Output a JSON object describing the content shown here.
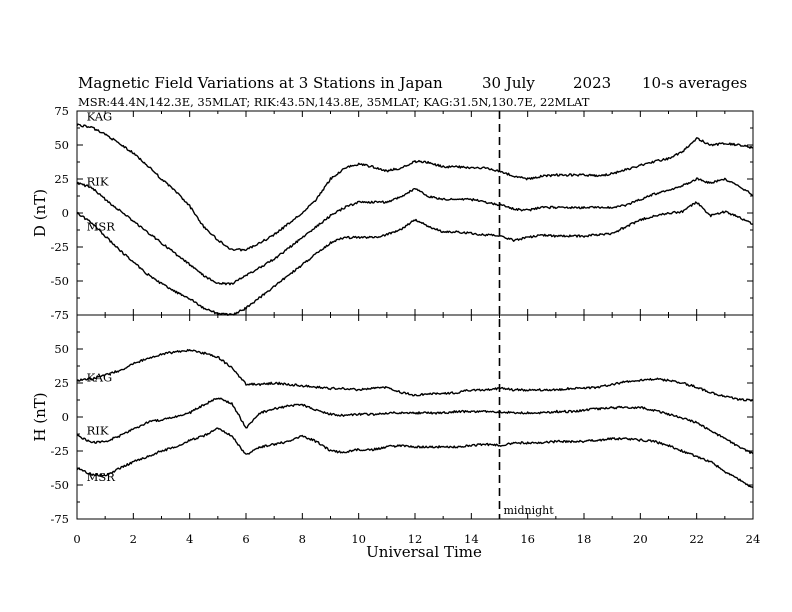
{
  "chart_data": {
    "type": "line",
    "title": "Magnetic Field Variations at 3 Stations in Japan",
    "date": "30 July",
    "year": "2023",
    "averaging": "10-s averages",
    "subtitle": "MSR:44.4N,142.3E, 35MLAT;  RIK:43.5N,143.8E, 35MLAT;  KAG:31.5N,130.7E, 22MLAT",
    "xlabel": "Universal Time",
    "xlim": [
      0,
      24
    ],
    "xticks": [
      0,
      2,
      4,
      6,
      8,
      10,
      12,
      14,
      16,
      18,
      20,
      22,
      24
    ],
    "grid": false,
    "annotation": {
      "x": 15,
      "label": "midnight"
    },
    "panels": [
      {
        "ylabel": "D (nT)",
        "ylim": [
          -75,
          75
        ],
        "yticks": [
          75,
          50,
          25,
          0,
          -25,
          -50,
          -75
        ],
        "series": [
          {
            "name": "KAG",
            "label_x": 0.2,
            "label_y": 71,
            "x": [
              0,
              0.5,
              1,
              1.5,
              2,
              2.5,
              3,
              3.5,
              4,
              4.5,
              5,
              5.5,
              6,
              6.5,
              7,
              7.5,
              8,
              8.5,
              9,
              9.5,
              10,
              10.5,
              11,
              11.5,
              12,
              12.5,
              13,
              13.5,
              14,
              14.5,
              15,
              15.5,
              16,
              16.5,
              17,
              17.5,
              18,
              18.5,
              19,
              19.5,
              20,
              20.5,
              21,
              21.5,
              22,
              22.5,
              23,
              23.5,
              24
            ],
            "y": [
              65,
              63,
              58,
              51,
              44,
              35,
              25,
              16,
              5,
              -10,
              -20,
              -27,
              -27,
              -22,
              -16,
              -8,
              0,
              10,
              25,
              33,
              36,
              34,
              31,
              33,
              38,
              37,
              34,
              34,
              33,
              33,
              31,
              27,
              25,
              27,
              28,
              28,
              28,
              27,
              29,
              32,
              35,
              38,
              40,
              45,
              55,
              50,
              51,
              50,
              48
            ]
          },
          {
            "name": "RIK",
            "label_x": 0.2,
            "label_y": 23,
            "x": [
              0,
              0.5,
              1,
              1.5,
              2,
              2.5,
              3,
              3.5,
              4,
              4.5,
              5,
              5.5,
              6,
              6.5,
              7,
              7.5,
              8,
              8.5,
              9,
              9.5,
              10,
              10.5,
              11,
              11.5,
              12,
              12.5,
              13,
              13.5,
              14,
              14.5,
              15,
              15.5,
              16,
              16.5,
              17,
              17.5,
              18,
              18.5,
              19,
              19.5,
              20,
              20.5,
              21,
              21.5,
              22,
              22.5,
              23,
              23.5,
              24
            ],
            "y": [
              22,
              19,
              10,
              2,
              -6,
              -14,
              -22,
              -30,
              -38,
              -46,
              -52,
              -52,
              -46,
              -40,
              -34,
              -26,
              -18,
              -10,
              -2,
              4,
              8,
              8,
              8,
              12,
              18,
              12,
              10,
              10,
              10,
              8,
              6,
              3,
              2,
              4,
              4,
              4,
              4,
              4,
              4,
              6,
              10,
              14,
              17,
              20,
              25,
              22,
              25,
              20,
              13
            ]
          },
          {
            "name": "MSR",
            "label_x": 0.2,
            "label_y": -10,
            "x": [
              0,
              0.5,
              1,
              1.5,
              2,
              2.5,
              3,
              3.5,
              4,
              4.5,
              5,
              5.5,
              6,
              6.5,
              7,
              7.5,
              8,
              8.5,
              9,
              9.5,
              10,
              10.5,
              11,
              11.5,
              12,
              12.5,
              13,
              13.5,
              14,
              14.5,
              15,
              15.5,
              16,
              16.5,
              17,
              17.5,
              18,
              18.5,
              19,
              19.5,
              20,
              20.5,
              21,
              21.5,
              22,
              22.5,
              23,
              23.5,
              24
            ],
            "y": [
              0,
              -7,
              -17,
              -27,
              -36,
              -45,
              -52,
              -58,
              -63,
              -70,
              -74,
              -75,
              -70,
              -62,
              -54,
              -46,
              -38,
              -30,
              -22,
              -18,
              -18,
              -18,
              -16,
              -12,
              -5,
              -10,
              -14,
              -14,
              -15,
              -16,
              -17,
              -20,
              -18,
              -16,
              -17,
              -17,
              -17,
              -16,
              -15,
              -10,
              -5,
              -2,
              0,
              1,
              8,
              -2,
              1,
              -3,
              -8
            ]
          }
        ]
      },
      {
        "ylabel": "H (nT)",
        "ylim": [
          -75,
          75
        ],
        "yticks": [
          50,
          25,
          0,
          -25,
          -50,
          -75
        ],
        "series": [
          {
            "name": "KAG",
            "label_x": 0.2,
            "label_y": 29,
            "x": [
              0,
              0.5,
              1,
              1.5,
              2,
              2.5,
              3,
              3.5,
              4,
              4.5,
              5,
              5.5,
              6,
              6.5,
              7,
              7.5,
              8,
              8.5,
              9,
              9.5,
              10,
              10.5,
              11,
              11.5,
              12,
              12.5,
              13,
              13.5,
              14,
              14.5,
              15,
              15.5,
              16,
              16.5,
              17,
              17.5,
              18,
              18.5,
              19,
              19.5,
              20,
              20.5,
              21,
              21.5,
              22,
              22.5,
              23,
              23.5,
              24
            ],
            "y": [
              27,
              28,
              31,
              34,
              39,
              43,
              46,
              48,
              49,
              47,
              44,
              36,
              24,
              24,
              25,
              24,
              23,
              22,
              21,
              21,
              20,
              21,
              22,
              18,
              16,
              17,
              17,
              18,
              20,
              20,
              21,
              20,
              20,
              20,
              20,
              21,
              21,
              22,
              24,
              26,
              27,
              28,
              27,
              25,
              22,
              18,
              15,
              13,
              12
            ]
          },
          {
            "name": "RIK",
            "label_x": 0.2,
            "label_y": -10,
            "x": [
              0,
              0.5,
              1,
              1.5,
              2,
              2.5,
              3,
              3.5,
              4,
              4.5,
              5,
              5.5,
              6,
              6.5,
              7,
              7.5,
              8,
              8.5,
              9,
              9.5,
              10,
              10.5,
              11,
              11.5,
              12,
              12.5,
              13,
              13.5,
              14,
              14.5,
              15,
              15.5,
              16,
              16.5,
              17,
              17.5,
              18,
              18.5,
              19,
              19.5,
              20,
              20.5,
              21,
              21.5,
              22,
              22.5,
              23,
              23.5,
              24
            ],
            "y": [
              -13,
              -19,
              -18,
              -14,
              -9,
              -4,
              -2,
              0,
              3,
              9,
              14,
              10,
              -8,
              3,
              6,
              8,
              9,
              5,
              2,
              1,
              2,
              2,
              3,
              3,
              3,
              3,
              3,
              4,
              4,
              4,
              4,
              3,
              3,
              3,
              4,
              4,
              5,
              6,
              7,
              7,
              7,
              5,
              2,
              -1,
              -4,
              -10,
              -16,
              -22,
              -27
            ]
          },
          {
            "name": "MSR",
            "label_x": 0.2,
            "label_y": -44,
            "x": [
              0,
              0.5,
              1,
              1.5,
              2,
              2.5,
              3,
              3.5,
              4,
              4.5,
              5,
              5.5,
              6,
              6.5,
              7,
              7.5,
              8,
              8.5,
              9,
              9.5,
              10,
              10.5,
              11,
              11.5,
              12,
              12.5,
              13,
              13.5,
              14,
              14.5,
              15,
              15.5,
              16,
              16.5,
              17,
              17.5,
              18,
              18.5,
              19,
              19.5,
              20,
              20.5,
              21,
              21.5,
              22,
              22.5,
              23,
              23.5,
              24
            ],
            "y": [
              -38,
              -42,
              -43,
              -38,
              -33,
              -29,
              -25,
              -22,
              -17,
              -14,
              -8,
              -14,
              -28,
              -22,
              -20,
              -18,
              -14,
              -18,
              -25,
              -26,
              -24,
              -24,
              -22,
              -21,
              -22,
              -22,
              -22,
              -22,
              -21,
              -20,
              -21,
              -19,
              -19,
              -19,
              -18,
              -18,
              -18,
              -17,
              -16,
              -16,
              -17,
              -18,
              -21,
              -25,
              -29,
              -33,
              -40,
              -46,
              -52
            ]
          }
        ]
      }
    ]
  }
}
